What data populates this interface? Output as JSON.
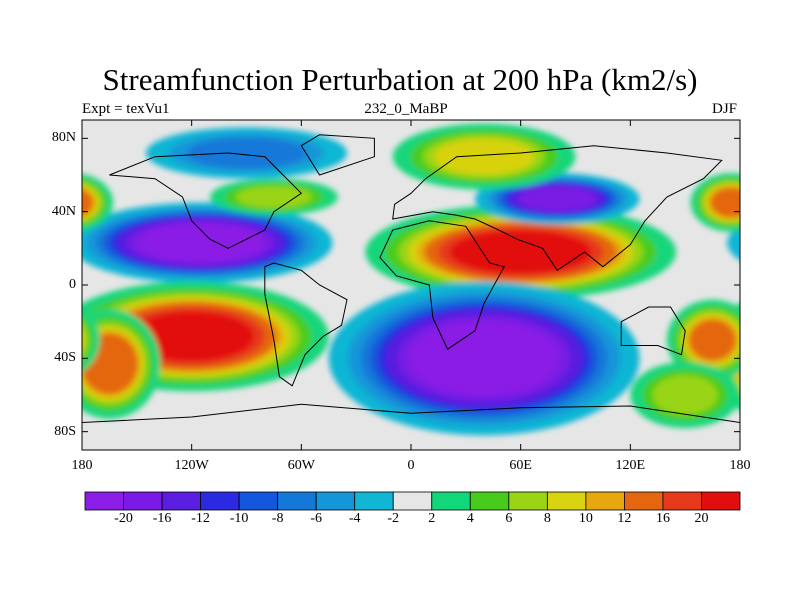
{
  "chart_data": {
    "type": "heatmap",
    "title": "Streamfunction Perturbation at 200 hPa (km2/s)",
    "left_label": "Expt = texVu1",
    "center_label": "232_0_MaBP",
    "right_label": "DJF",
    "x_ticks": [
      "180",
      "120W",
      "60W",
      "0",
      "60E",
      "120E",
      "180"
    ],
    "y_ticks": [
      "80N",
      "40N",
      "0",
      "40S",
      "80S"
    ],
    "xlim": [
      -180,
      180
    ],
    "ylim": [
      -90,
      90
    ],
    "colorbar_levels": [
      "-20",
      "-16",
      "-12",
      "-10",
      "-8",
      "-6",
      "-4",
      "-2",
      "2",
      "4",
      "6",
      "8",
      "10",
      "12",
      "16",
      "20"
    ],
    "colorbar_colors": [
      "#8a1ee6",
      "#7a1ae4",
      "#5a1ee0",
      "#2c2ae0",
      "#1456dc",
      "#1478d8",
      "#1496d8",
      "#10b6d4",
      "#e6e6e6",
      "#12d67a",
      "#48cc1c",
      "#9ad414",
      "#d8d210",
      "#e6a80e",
      "#e4660e",
      "#e6381a",
      "#e20e0e"
    ],
    "field_features": [
      {
        "name": "tropical-pacific-low-nh",
        "lon": -115,
        "lat": 23,
        "value": -22
      },
      {
        "name": "south-pacific-high",
        "lon": -120,
        "lat": -28,
        "value": 20
      },
      {
        "name": "south-pacific-high-west",
        "lon": -165,
        "lat": -43,
        "value": 14
      },
      {
        "name": "africa-asia-high",
        "lon": 60,
        "lat": 18,
        "value": 20
      },
      {
        "name": "southern-africa-low",
        "lon": 40,
        "lat": -40,
        "value": -22
      },
      {
        "name": "east-asia-low",
        "lon": 80,
        "lat": 47,
        "value": -16
      },
      {
        "name": "eurasia-arctic-high",
        "lon": 40,
        "lat": 70,
        "value": 8
      },
      {
        "name": "north-america-arctic-low",
        "lon": -90,
        "lat": 72,
        "value": -6
      },
      {
        "name": "north-atlantic-high",
        "lon": -75,
        "lat": 48,
        "value": 6
      },
      {
        "name": "north-pacific-high",
        "lon": 175,
        "lat": 45,
        "value": 12
      },
      {
        "name": "south-indian-high",
        "lon": 165,
        "lat": -30,
        "value": 12
      },
      {
        "name": "southern-ocean-high",
        "lon": 150,
        "lat": -60,
        "value": 6
      }
    ]
  }
}
